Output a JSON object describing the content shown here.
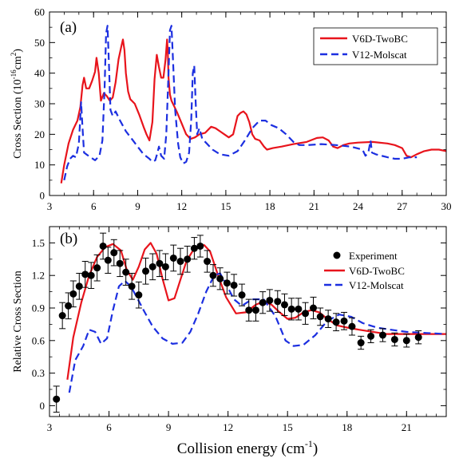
{
  "chart_data": [
    {
      "type": "line",
      "panel_label": "(a)",
      "xlabel": "",
      "ylabel_main": "Cross Section (10",
      "ylabel_exp": "-16",
      "ylabel_unit": "cm",
      "ylabel_unit_exp": "2",
      "ylabel_close": ")",
      "xlim": [
        3,
        30
      ],
      "ylim": [
        0,
        60
      ],
      "xticks": [
        3,
        6,
        9,
        12,
        15,
        18,
        21,
        24,
        27,
        30
      ],
      "yticks": [
        0,
        10,
        20,
        30,
        40,
        50,
        60
      ],
      "legend_position": "top-right",
      "series": [
        {
          "name": "V6D-TwoBC",
          "color": "#e8141c",
          "style": "solid",
          "x": [
            3.8,
            4.0,
            4.3,
            4.6,
            4.9,
            5.1,
            5.25,
            5.35,
            5.5,
            5.7,
            5.9,
            6.1,
            6.2,
            6.35,
            6.5,
            6.7,
            6.9,
            7.1,
            7.3,
            7.5,
            7.7,
            7.9,
            8.0,
            8.1,
            8.2,
            8.35,
            8.5,
            8.8,
            9.1,
            9.4,
            9.6,
            9.8,
            10.0,
            10.15,
            10.3,
            10.45,
            10.6,
            10.75,
            10.9,
            11.0,
            11.05,
            11.1,
            11.2,
            11.3,
            11.5,
            11.7,
            12.0,
            12.3,
            12.6,
            12.9,
            13.2,
            13.6,
            14.0,
            14.3,
            14.6,
            14.9,
            15.2,
            15.5,
            15.8,
            16.0,
            16.2,
            16.4,
            16.6,
            16.8,
            17.0,
            17.3,
            17.6,
            17.8,
            18.2,
            18.8,
            19.6,
            20.5,
            21.2,
            21.6,
            22.0,
            22.3,
            22.6,
            23.0,
            23.4,
            24.0,
            25.0,
            26.0,
            26.5,
            27.0,
            27.3,
            27.6,
            28.0,
            28.5,
            29.0,
            29.5,
            30.0
          ],
          "y": [
            4.0,
            10.0,
            17.0,
            21.5,
            24.5,
            29.0,
            36.0,
            38.5,
            35.0,
            35.0,
            37.5,
            40.5,
            45.0,
            40.0,
            31.0,
            33.5,
            32.5,
            31.0,
            32.0,
            37.0,
            44.5,
            49.0,
            51.0,
            47.5,
            40.0,
            34.0,
            31.5,
            30.0,
            26.5,
            22.5,
            20.0,
            18.0,
            24.0,
            38.0,
            46.0,
            42.0,
            38.5,
            38.5,
            44.5,
            51.0,
            47.0,
            38.5,
            33.0,
            31.0,
            29.0,
            27.0,
            23.5,
            20.0,
            18.5,
            19.0,
            20.0,
            20.5,
            22.5,
            22.0,
            21.0,
            20.0,
            19.0,
            20.0,
            26.0,
            27.0,
            27.5,
            26.5,
            24.0,
            20.0,
            18.5,
            18.0,
            16.0,
            15.0,
            15.5,
            16.0,
            16.8,
            17.5,
            18.8,
            19.0,
            18.0,
            16.0,
            15.5,
            16.5,
            17.0,
            17.3,
            17.5,
            17.0,
            16.5,
            15.5,
            13.0,
            12.5,
            13.5,
            14.5,
            15.0,
            15.0,
            14.5
          ]
        },
        {
          "name": "V12-Molscat",
          "color": "#1c2fe0",
          "style": "dashed",
          "x": [
            4.0,
            4.2,
            4.4,
            4.6,
            4.8,
            5.0,
            5.15,
            5.25,
            5.35,
            5.5,
            5.8,
            6.1,
            6.4,
            6.6,
            6.75,
            6.85,
            6.95,
            7.05,
            7.15,
            7.3,
            7.5,
            7.8,
            8.2,
            8.6,
            9.0,
            9.4,
            9.8,
            10.0,
            10.2,
            10.35,
            10.45,
            10.6,
            10.8,
            10.95,
            11.1,
            11.2,
            11.3,
            11.4,
            11.55,
            11.75,
            11.9,
            12.1,
            12.3,
            12.5,
            12.65,
            12.75,
            12.85,
            12.95,
            13.05,
            13.2,
            13.4,
            13.7,
            14.1,
            14.6,
            15.2,
            15.8,
            16.3,
            16.8,
            17.3,
            17.7,
            18.1,
            18.6,
            19.1,
            19.6,
            20.0,
            20.6,
            21.5,
            22.5,
            23.5,
            24.3,
            24.5,
            24.7,
            24.85,
            24.95,
            25.2,
            25.6,
            26.0,
            26.5,
            27.0,
            27.5,
            28.0
          ],
          "y": [
            5.0,
            9.5,
            12.0,
            13.0,
            12.5,
            17.0,
            30.5,
            22.0,
            14.0,
            13.5,
            12.5,
            11.5,
            13.0,
            18.0,
            35.0,
            53.0,
            55.5,
            42.0,
            28.0,
            26.0,
            27.5,
            24.5,
            21.0,
            18.5,
            16.0,
            13.5,
            12.0,
            11.0,
            11.5,
            14.0,
            16.0,
            13.0,
            12.0,
            20.0,
            40.0,
            54.0,
            55.5,
            45.0,
            28.0,
            17.0,
            12.5,
            10.5,
            11.0,
            14.0,
            25.0,
            40.0,
            42.5,
            30.0,
            20.0,
            22.0,
            18.5,
            17.0,
            15.0,
            13.5,
            13.0,
            14.5,
            18.0,
            22.0,
            24.5,
            24.5,
            23.0,
            22.0,
            20.0,
            17.5,
            16.5,
            16.5,
            16.8,
            16.5,
            16.0,
            15.0,
            13.0,
            14.0,
            18.0,
            14.0,
            13.5,
            13.0,
            12.5,
            12.0,
            12.0,
            12.5,
            12.5
          ]
        }
      ]
    },
    {
      "type": "line",
      "panel_label": "(b)",
      "xlabel_main": "Collision energy (cm",
      "xlabel_exp": "-1",
      "xlabel_close": ")",
      "ylabel": "Relative Cross Section",
      "xlim": [
        3,
        23
      ],
      "ylim": [
        -0.1,
        1.65
      ],
      "xticks": [
        3,
        6,
        9,
        12,
        15,
        18,
        21
      ],
      "yticks": [
        "0",
        "0.3",
        "0.6",
        "0.9",
        "1.2",
        "1.5"
      ],
      "legend_position": "top-right",
      "experiment": {
        "name": "Experiment",
        "color": "#000000",
        "x": [
          3.35,
          3.65,
          3.95,
          4.2,
          4.5,
          4.8,
          5.1,
          5.4,
          5.7,
          5.95,
          6.25,
          6.55,
          6.85,
          7.15,
          7.5,
          7.85,
          8.2,
          8.55,
          8.85,
          9.25,
          9.6,
          9.95,
          10.3,
          10.6,
          10.95,
          11.25,
          11.6,
          11.95,
          12.3,
          12.7,
          13.05,
          13.4,
          13.75,
          14.1,
          14.5,
          14.85,
          15.2,
          15.55,
          15.9,
          16.3,
          16.65,
          17.05,
          17.45,
          17.85,
          18.25,
          18.7,
          19.2,
          19.8,
          20.4,
          21.0,
          21.6
        ],
        "y": [
          0.06,
          0.83,
          0.92,
          1.03,
          1.1,
          1.21,
          1.2,
          1.27,
          1.47,
          1.34,
          1.41,
          1.31,
          1.23,
          1.1,
          1.02,
          1.24,
          1.28,
          1.31,
          1.28,
          1.36,
          1.33,
          1.35,
          1.45,
          1.47,
          1.33,
          1.2,
          1.17,
          1.13,
          1.11,
          1.02,
          0.88,
          0.88,
          0.95,
          0.97,
          0.96,
          0.93,
          0.89,
          0.89,
          0.85,
          0.9,
          0.82,
          0.8,
          0.77,
          0.78,
          0.73,
          0.58,
          0.64,
          0.65,
          0.61,
          0.6,
          0.63
        ],
        "err": [
          0.12,
          0.12,
          0.12,
          0.12,
          0.12,
          0.12,
          0.12,
          0.12,
          0.12,
          0.12,
          0.12,
          0.12,
          0.12,
          0.12,
          0.12,
          0.12,
          0.12,
          0.12,
          0.12,
          0.12,
          0.12,
          0.12,
          0.1,
          0.1,
          0.1,
          0.1,
          0.1,
          0.1,
          0.1,
          0.1,
          0.1,
          0.1,
          0.1,
          0.1,
          0.1,
          0.1,
          0.1,
          0.1,
          0.1,
          0.1,
          0.08,
          0.08,
          0.08,
          0.08,
          0.08,
          0.06,
          0.06,
          0.06,
          0.06,
          0.06,
          0.06
        ]
      },
      "series": [
        {
          "name": "V6D-TwoBC",
          "color": "#e8141c",
          "style": "solid",
          "x": [
            3.9,
            4.2,
            4.6,
            5.0,
            5.4,
            5.8,
            6.2,
            6.6,
            6.9,
            7.2,
            7.5,
            7.8,
            8.1,
            8.4,
            8.7,
            9.0,
            9.3,
            9.6,
            9.9,
            10.2,
            10.5,
            10.8,
            11.1,
            11.5,
            11.9,
            12.4,
            12.9,
            13.4,
            13.8,
            14.2,
            14.6,
            15.0,
            15.4,
            15.8,
            16.2,
            16.6,
            17.0,
            17.5,
            18.0,
            18.6,
            19.3,
            20.0,
            21.0,
            22.0,
            23.0
          ],
          "y": [
            0.24,
            0.63,
            0.95,
            1.2,
            1.37,
            1.46,
            1.49,
            1.43,
            1.25,
            1.16,
            1.28,
            1.44,
            1.5,
            1.4,
            1.17,
            0.97,
            0.99,
            1.16,
            1.33,
            1.42,
            1.46,
            1.48,
            1.42,
            1.2,
            1.0,
            0.85,
            0.86,
            0.93,
            0.96,
            0.93,
            0.86,
            0.8,
            0.81,
            0.86,
            0.88,
            0.86,
            0.8,
            0.74,
            0.72,
            0.7,
            0.68,
            0.66,
            0.66,
            0.66,
            0.66
          ]
        },
        {
          "name": "V12-Molscat",
          "color": "#1c2fe0",
          "style": "dashed",
          "x": [
            4.0,
            4.3,
            4.7,
            5.0,
            5.3,
            5.6,
            5.9,
            6.2,
            6.5,
            6.8,
            7.1,
            7.4,
            7.8,
            8.2,
            8.7,
            9.2,
            9.7,
            10.1,
            10.5,
            10.9,
            11.3,
            11.6,
            11.9,
            12.3,
            12.7,
            13.2,
            13.8,
            14.4,
            14.9,
            15.3,
            15.8,
            16.4,
            17.0,
            17.6,
            18.2,
            18.8,
            19.5,
            20.2,
            21.0,
            22.0,
            23.0
          ],
          "y": [
            0.12,
            0.42,
            0.55,
            0.7,
            0.68,
            0.57,
            0.62,
            0.88,
            1.1,
            1.15,
            1.1,
            1.0,
            0.86,
            0.73,
            0.62,
            0.57,
            0.58,
            0.68,
            0.85,
            1.05,
            1.2,
            1.22,
            1.12,
            0.98,
            0.92,
            0.98,
            0.98,
            0.82,
            0.6,
            0.55,
            0.56,
            0.65,
            0.78,
            0.84,
            0.82,
            0.76,
            0.72,
            0.7,
            0.68,
            0.67,
            0.66
          ]
        }
      ]
    }
  ]
}
